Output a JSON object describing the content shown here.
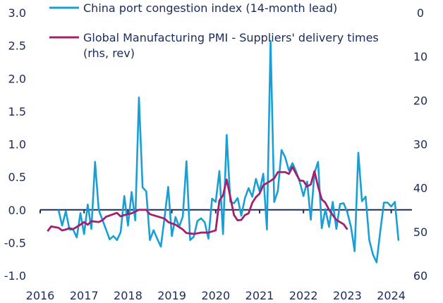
{
  "chart_data": {
    "type": "line",
    "title": "",
    "xlabel": "",
    "ylabel_left": "",
    "ylabel_right": "",
    "x_ticks": [
      "2016",
      "2017",
      "2018",
      "2019",
      "2020",
      "2021",
      "2022",
      "2023",
      "2024"
    ],
    "xlim": [
      "2016-01",
      "2024-06"
    ],
    "y_left": {
      "lim": [
        -1.0,
        3.0
      ],
      "ticks": [
        "-1.0",
        "-0.5",
        "0.0",
        "0.5",
        "1.0",
        "1.5",
        "2.0",
        "2.5",
        "3.0"
      ]
    },
    "y_right": {
      "lim": [
        0,
        60
      ],
      "reversed": true,
      "ticks": [
        "0",
        "10",
        "20",
        "30",
        "40",
        "50",
        "60"
      ]
    },
    "grid": false,
    "zero_line": true,
    "legend_placement": "top",
    "series": [
      {
        "name": "China port congestion index (14-month lead)",
        "axis": "left",
        "color": "#1a9fd4",
        "start": "2016-06",
        "frequency": "monthly",
        "values": [
          0.0,
          -0.24,
          -0.02,
          -0.3,
          -0.3,
          -0.42,
          -0.05,
          -0.37,
          0.08,
          -0.29,
          0.73,
          0.0,
          -0.15,
          -0.3,
          -0.45,
          -0.4,
          -0.46,
          -0.34,
          0.21,
          -0.24,
          0.27,
          -0.16,
          1.71,
          0.34,
          0.28,
          -0.46,
          -0.31,
          -0.44,
          -0.56,
          -0.12,
          0.35,
          -0.4,
          -0.11,
          -0.26,
          -0.1,
          0.74,
          -0.46,
          -0.41,
          -0.17,
          -0.13,
          -0.19,
          -0.44,
          0.17,
          0.12,
          0.59,
          -0.37,
          1.14,
          0.12,
          0.1,
          0.18,
          -0.09,
          0.18,
          0.33,
          0.2,
          0.47,
          0.28,
          0.55,
          -0.3,
          2.57,
          0.12,
          0.29,
          0.91,
          0.8,
          0.6,
          0.71,
          0.58,
          0.42,
          0.21,
          0.43,
          -0.15,
          0.56,
          0.73,
          -0.28,
          0.01,
          -0.26,
          0.12,
          -0.29,
          0.09,
          0.1,
          -0.04,
          -0.26,
          -0.63,
          0.87,
          0.13,
          0.2,
          -0.46,
          -0.68,
          -0.8,
          -0.33,
          0.11,
          0.11,
          0.05,
          0.12,
          -0.47
        ]
      },
      {
        "name": "Global Manufacturing PMI - Suppliers' delivery times",
        "name_line2": "(rhs, rev)",
        "axis": "right",
        "color": "#a2206f",
        "points": [
          [
            "2016-03",
            49.9
          ],
          [
            "2016-04",
            48.8
          ],
          [
            "2016-06",
            49.1
          ],
          [
            "2016-07",
            49.7
          ],
          [
            "2016-08",
            49.5
          ],
          [
            "2016-09",
            49.2
          ],
          [
            "2016-10",
            49.4
          ],
          [
            "2016-12",
            48.4
          ],
          [
            "2017-01",
            47.8
          ],
          [
            "2017-02",
            48.4
          ],
          [
            "2017-03",
            47.6
          ],
          [
            "2017-05",
            47.8
          ],
          [
            "2017-06",
            47.4
          ],
          [
            "2017-07",
            46.6
          ],
          [
            "2017-09",
            46.0
          ],
          [
            "2017-10",
            45.7
          ],
          [
            "2017-11",
            46.5
          ],
          [
            "2017-12",
            46.2
          ],
          [
            "2018-02",
            45.8
          ],
          [
            "2018-03",
            45.4
          ],
          [
            "2018-04",
            45.0
          ],
          [
            "2018-06",
            45.0
          ],
          [
            "2018-07",
            46.0
          ],
          [
            "2018-09",
            46.5
          ],
          [
            "2018-11",
            47.0
          ],
          [
            "2018-12",
            47.8
          ],
          [
            "2019-02",
            48.4
          ],
          [
            "2019-04",
            49.5
          ],
          [
            "2019-05",
            50.3
          ],
          [
            "2019-07",
            50.5
          ],
          [
            "2019-09",
            50.2
          ],
          [
            "2019-10",
            50.2
          ],
          [
            "2019-11",
            50.2
          ],
          [
            "2020-01",
            49.7
          ],
          [
            "2020-02",
            42.9
          ],
          [
            "2020-03",
            41.7
          ],
          [
            "2020-04",
            38.1
          ],
          [
            "2020-05",
            42.1
          ],
          [
            "2020-06",
            46.2
          ],
          [
            "2020-07",
            47.4
          ],
          [
            "2020-08",
            47.3
          ],
          [
            "2020-09",
            46.2
          ],
          [
            "2020-10",
            45.8
          ],
          [
            "2020-11",
            43.4
          ],
          [
            "2020-12",
            42.1
          ],
          [
            "2021-01",
            41.3
          ],
          [
            "2021-02",
            39.4
          ],
          [
            "2021-04",
            38.4
          ],
          [
            "2021-05",
            37.8
          ],
          [
            "2021-06",
            36.4
          ],
          [
            "2021-08",
            36.4
          ],
          [
            "2021-09",
            36.8
          ],
          [
            "2021-10",
            35.2
          ],
          [
            "2021-11",
            36.8
          ],
          [
            "2021-12",
            38.3
          ],
          [
            "2022-01",
            38.4
          ],
          [
            "2022-02",
            39.7
          ],
          [
            "2022-03",
            39.2
          ],
          [
            "2022-04",
            36.2
          ],
          [
            "2022-05",
            39.7
          ],
          [
            "2022-06",
            42.6
          ],
          [
            "2022-07",
            43.4
          ],
          [
            "2022-08",
            45.0
          ],
          [
            "2022-09",
            46.2
          ],
          [
            "2022-10",
            47.3
          ],
          [
            "2022-11",
            47.8
          ],
          [
            "2022-12",
            48.3
          ],
          [
            "2023-01",
            49.5
          ]
        ]
      }
    ]
  }
}
